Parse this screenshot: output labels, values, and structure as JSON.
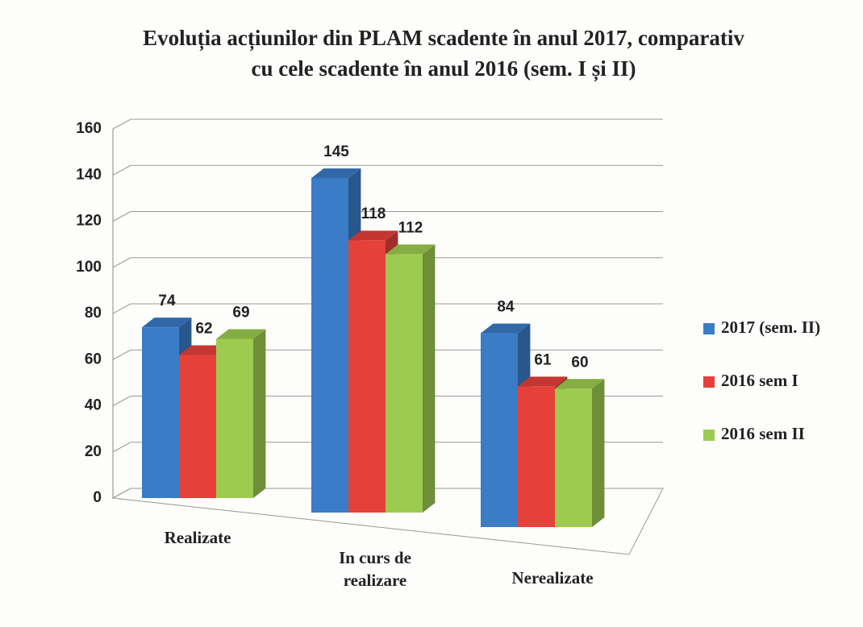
{
  "chart_data": {
    "type": "bar3d",
    "title": "Evoluția acțiunilor din PLAM scadente în anul 2017, comparativ cu cele scadente în anul 2016 (sem. I și II)",
    "categories": [
      "Realizate",
      "In curs de realizare",
      "Nerealizate"
    ],
    "series": [
      {
        "name": "2017 (sem. II)",
        "color": "#3a7cc6",
        "values": [
          74,
          145,
          84
        ]
      },
      {
        "name": "2016 sem I",
        "color": "#e5403a",
        "values": [
          62,
          118,
          61
        ]
      },
      {
        "name": "2016 sem II",
        "color": "#9dcb4f",
        "values": [
          69,
          112,
          60
        ]
      }
    ],
    "ylim": [
      0,
      160
    ],
    "yticks": [
      0,
      20,
      40,
      60,
      80,
      100,
      120,
      140,
      160
    ],
    "grid": true,
    "legend": "right"
  }
}
